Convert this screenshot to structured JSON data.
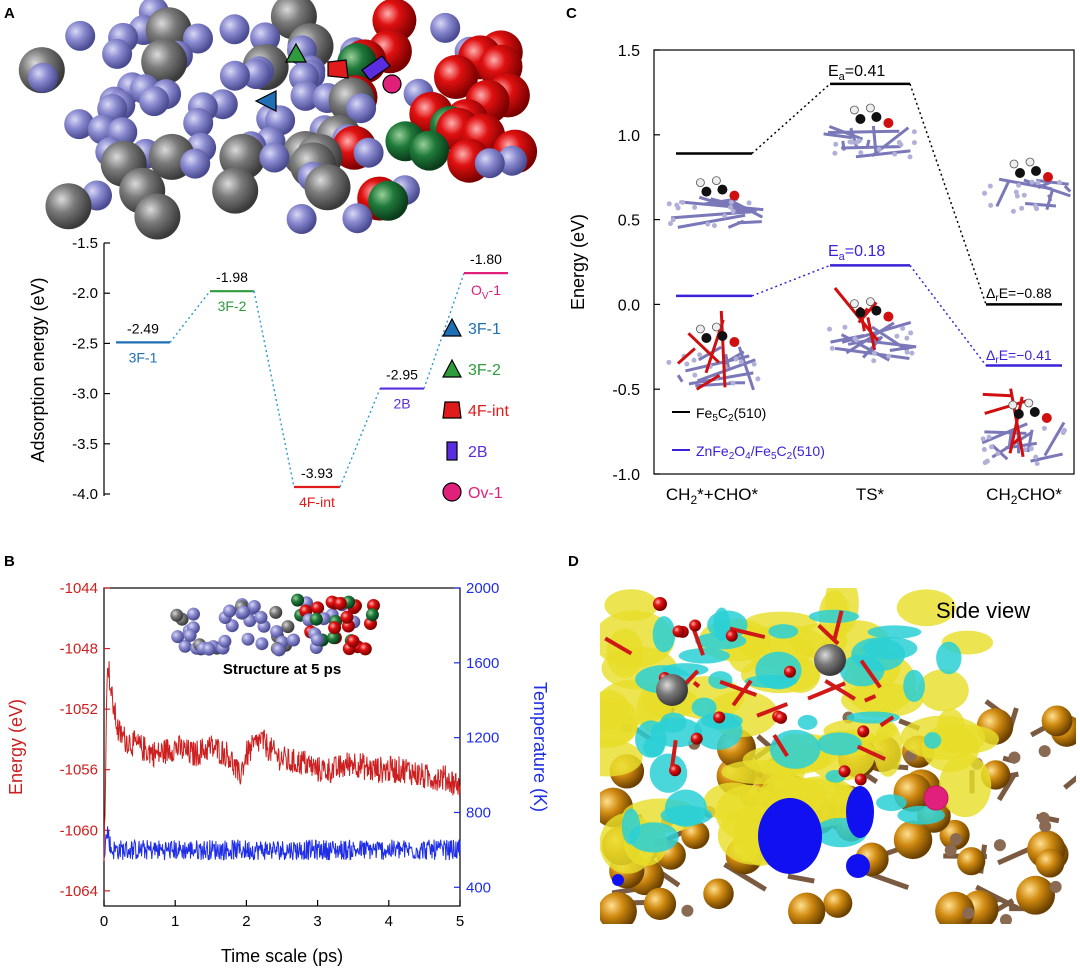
{
  "panels": {
    "a": {
      "label": "A",
      "ylabel": "Adsorption energy (eV)",
      "legend": [
        {
          "label": "3F-1",
          "color": "#1f6fb4",
          "icon": "triangle-up-icon"
        },
        {
          "label": "3F-2",
          "color": "#2e9b3c",
          "icon": "triangle-up-icon"
        },
        {
          "label": "4F-int",
          "color": "#e01b1b",
          "icon": "trapezoid-icon"
        },
        {
          "label": "2B",
          "color": "#5a2ee0",
          "icon": "rectangle-icon"
        },
        {
          "label": "Ov-1",
          "color": "#e0207a",
          "icon": "circle-icon"
        }
      ]
    },
    "b": {
      "label": "B",
      "xlabel": "Time scale (ps)",
      "ylabel_left": "Energy (eV)",
      "ylabel_right": "Temperature (K)",
      "inset_caption": "Structure at 5 ps"
    },
    "c": {
      "label": "C",
      "ylabel": "Energy (eV)",
      "legend": [
        {
          "label": "Fe5C2(510)",
          "color": "#000000"
        },
        {
          "label": "ZnFe2O4/Fe5C2(510)",
          "color": "#3a22d8"
        }
      ],
      "annotations": {
        "ea_black": "Ea=0.41",
        "ea_blue": "Ea=0.18",
        "dre_black": "ΔrE=−0.88",
        "dre_blue": "ΔrE=−0.41"
      }
    },
    "d": {
      "label": "D",
      "title": "Side view"
    }
  },
  "chart_data": [
    {
      "panel": "A",
      "type": "line",
      "subtype": "energy-level diagram",
      "ylabel": "Adsorption energy (eV)",
      "ylim": [
        -4.0,
        -1.5
      ],
      "yticks": [
        -1.5,
        -2.0,
        -2.5,
        -3.0,
        -3.5,
        -4.0
      ],
      "levels": [
        {
          "site": "3F-1",
          "value": -2.49,
          "value_label": "-2.49",
          "color": "#1f6fb4"
        },
        {
          "site": "3F-2",
          "value": -1.98,
          "value_label": "-1.98",
          "color": "#2e9b3c"
        },
        {
          "site": "4F-int",
          "value": -3.93,
          "value_label": "-3.93",
          "color": "#e01b1b"
        },
        {
          "site": "2B",
          "value": -2.95,
          "value_label": "-2.95",
          "color": "#5a2ee0"
        },
        {
          "site": "Ov-1",
          "value": -1.8,
          "value_label": "-1.80",
          "color": "#e0207a"
        }
      ]
    },
    {
      "panel": "B",
      "type": "line",
      "xlabel": "Time scale (ps)",
      "xlim": [
        0,
        5
      ],
      "xticks": [
        0,
        1,
        2,
        3,
        4,
        5
      ],
      "y_left": {
        "label": "Energy (eV)",
        "ylim": [
          -1065,
          -1044
        ],
        "ticks": [
          -1044,
          -1048,
          -1052,
          -1056,
          -1060,
          -1064
        ]
      },
      "y_right": {
        "label": "Temperature (K)",
        "ylim": [
          300,
          2000
        ],
        "ticks": [
          400,
          800,
          1200,
          1600,
          2000
        ]
      },
      "series": [
        {
          "name": "Energy (eV)",
          "axis": "left",
          "color": "#cc1f1f",
          "x": [
            0,
            0.05,
            0.1,
            0.2,
            0.3,
            0.5,
            0.75,
            1.0,
            1.25,
            1.5,
            1.75,
            1.9,
            2.0,
            2.2,
            2.4,
            2.6,
            2.8,
            3.0,
            3.25,
            3.5,
            3.75,
            4.0,
            4.25,
            4.5,
            4.75,
            5.0
          ],
          "y": [
            -1062,
            -1048.5,
            -1051,
            -1053.5,
            -1054,
            -1054.5,
            -1055,
            -1054.5,
            -1055,
            -1054.5,
            -1055,
            -1056.5,
            -1055,
            -1054,
            -1055,
            -1055.5,
            -1055.5,
            -1056,
            -1056,
            -1055.5,
            -1056,
            -1056,
            -1056,
            -1056.5,
            -1056.5,
            -1057
          ]
        },
        {
          "name": "Temperature (K)",
          "axis": "right",
          "color": "#1f2ee6",
          "x": [
            0,
            0.05,
            0.1,
            0.5,
            1.0,
            1.5,
            2.0,
            2.5,
            3.0,
            3.5,
            4.0,
            4.5,
            5.0
          ],
          "y": [
            600,
            700,
            600,
            600,
            600,
            600,
            600,
            600,
            600,
            600,
            600,
            600,
            600
          ]
        }
      ]
    },
    {
      "panel": "C",
      "type": "line",
      "subtype": "reaction energy profile",
      "ylabel": "Energy (eV)",
      "ylim": [
        -1.0,
        1.5
      ],
      "yticks": [
        1.5,
        1.0,
        0.5,
        0.0,
        -0.5,
        -1.0
      ],
      "categories": [
        "CH2*+CHO*",
        "TS*",
        "CH2CHO*"
      ],
      "series": [
        {
          "name": "Fe5C2(510)",
          "color": "#000000",
          "values": [
            0.89,
            1.3,
            0.0
          ]
        },
        {
          "name": "ZnFe2O4/Fe5C2(510)",
          "color": "#3a22d8",
          "values": [
            0.05,
            0.23,
            -0.36
          ]
        }
      ]
    }
  ]
}
